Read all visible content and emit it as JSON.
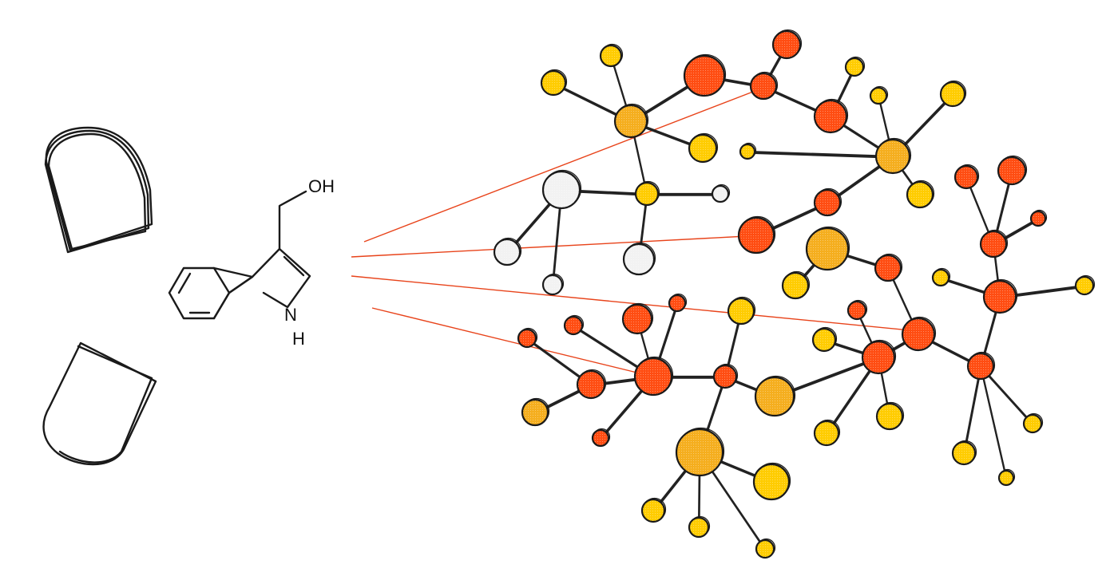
{
  "labels": {
    "oh": "OH",
    "n": "N",
    "h": "H"
  },
  "colors": {
    "red": "#ff4d12",
    "orange": "#f5ae1e",
    "yellow": "#ffcc00",
    "white": "#f2f2f2",
    "ray": "#e8431a",
    "ink": "#1a1a1a"
  }
}
